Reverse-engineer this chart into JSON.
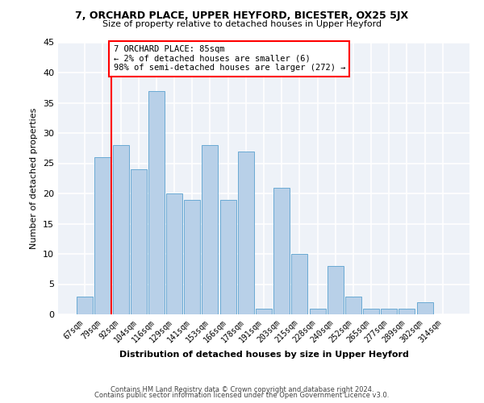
{
  "title": "7, ORCHARD PLACE, UPPER HEYFORD, BICESTER, OX25 5JX",
  "subtitle": "Size of property relative to detached houses in Upper Heyford",
  "xlabel": "Distribution of detached houses by size in Upper Heyford",
  "ylabel": "Number of detached properties",
  "bar_labels": [
    "67sqm",
    "79sqm",
    "92sqm",
    "104sqm",
    "116sqm",
    "129sqm",
    "141sqm",
    "153sqm",
    "166sqm",
    "178sqm",
    "191sqm",
    "203sqm",
    "215sqm",
    "228sqm",
    "240sqm",
    "252sqm",
    "265sqm",
    "277sqm",
    "289sqm",
    "302sqm",
    "314sqm"
  ],
  "bar_values": [
    3,
    26,
    28,
    24,
    37,
    20,
    19,
    28,
    19,
    27,
    1,
    21,
    10,
    1,
    8,
    3,
    1,
    1,
    1,
    2,
    0
  ],
  "bar_color": "#b8d0e8",
  "bar_edge_color": "#6aaad4",
  "ref_line_index": 1,
  "annotation_line1": "7 ORCHARD PLACE: 85sqm",
  "annotation_line2": "← 2% of detached houses are smaller (6)",
  "annotation_line3": "98% of semi-detached houses are larger (272) →",
  "annotation_bbox_facecolor": "white",
  "annotation_bbox_edgecolor": "red",
  "ref_line_color": "red",
  "ylim": [
    0,
    45
  ],
  "yticks": [
    0,
    5,
    10,
    15,
    20,
    25,
    30,
    35,
    40,
    45
  ],
  "footer_line1": "Contains HM Land Registry data © Crown copyright and database right 2024.",
  "footer_line2": "Contains public sector information licensed under the Open Government Licence v3.0.",
  "bg_color": "#ffffff",
  "plot_bg_color": "#eef2f8",
  "grid_color": "#ffffff",
  "title_fontsize": 9,
  "subtitle_fontsize": 8,
  "xlabel_fontsize": 8,
  "ylabel_fontsize": 8,
  "tick_fontsize": 7
}
